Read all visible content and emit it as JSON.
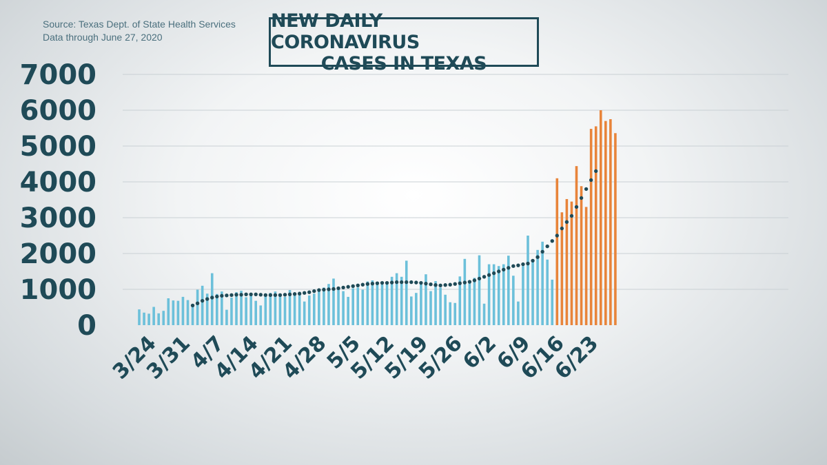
{
  "source": {
    "line1": "Source: Texas Dept. of State Health Services",
    "line2": "Data through  June 27, 2020"
  },
  "colors": {
    "bar_blue": "#6cc0da",
    "bar_orange": "#e8843a",
    "trend": "#1f4a57",
    "axis_text": "#1f4a57",
    "grid": "#c9d0d4"
  },
  "chart_data": {
    "type": "bar",
    "title": "NEW DAILY CORONAVIRUS CASES IN TEXAS",
    "title_lines": [
      "NEW DAILY CORONAVIRUS",
      "CASES IN TEXAS"
    ],
    "xlabel": "",
    "ylabel": "",
    "ylim": [
      0,
      7000
    ],
    "yticks": [
      0,
      1000,
      2000,
      3000,
      4000,
      5000,
      6000,
      7000
    ],
    "xtick_labels": [
      "3/24",
      "3/31",
      "4/7",
      "4/14",
      "4/21",
      "4/28",
      "5/5",
      "5/12",
      "5/19",
      "5/26",
      "6/2",
      "6/9",
      "6/16",
      "6/23"
    ],
    "grid": true,
    "legend": "none",
    "x_start": "3/24",
    "series": [
      {
        "values": [
          440,
          350,
          320,
          510,
          330,
          400,
          750,
          690,
          680,
          790,
          700,
          530,
          990,
          1100,
          880,
          1450,
          870,
          940,
          430,
          770,
          920,
          960,
          780,
          840,
          680,
          550,
          800,
          900,
          940,
          880,
          790,
          980,
          850,
          930,
          660,
          830,
          880,
          1000,
          1050,
          1150,
          1300,
          1020,
          950,
          790,
          1030,
          1050,
          990,
          1220,
          1250,
          1130,
          1140,
          1200,
          1350,
          1450,
          1350,
          1800,
          800,
          900,
          1200,
          1420,
          950,
          1230,
          1050,
          850,
          640,
          620,
          1360,
          1850,
          1200,
          1320,
          1950,
          600,
          1700,
          1700,
          1650,
          1700,
          1940,
          1380,
          660,
          1650,
          2500,
          1830,
          2100,
          2330,
          1830,
          1270
        ]
      },
      {
        "values": [
          4100,
          3150,
          3520,
          3450,
          4440,
          3880,
          3300,
          5480,
          5550,
          6000,
          5700,
          5750,
          5360
        ]
      }
    ],
    "trend_line": {
      "style": "dotted",
      "start_index": 11,
      "values": [
        550,
        610,
        680,
        730,
        770,
        800,
        820,
        830,
        840,
        850,
        850,
        860,
        860,
        860,
        850,
        840,
        840,
        840,
        840,
        850,
        860,
        870,
        880,
        900,
        920,
        950,
        980,
        990,
        1000,
        1010,
        1030,
        1050,
        1070,
        1090,
        1110,
        1130,
        1150,
        1160,
        1170,
        1180,
        1180,
        1190,
        1200,
        1200,
        1200,
        1200,
        1190,
        1180,
        1160,
        1140,
        1120,
        1110,
        1120,
        1130,
        1150,
        1170,
        1190,
        1210,
        1250,
        1300,
        1350,
        1400,
        1450,
        1500,
        1550,
        1600,
        1650,
        1670,
        1700,
        1720,
        1800,
        1900,
        2050,
        2200,
        2350,
        2500,
        2700,
        2880,
        3050,
        3300,
        3550,
        3800,
        4050,
        4300
      ]
    }
  }
}
